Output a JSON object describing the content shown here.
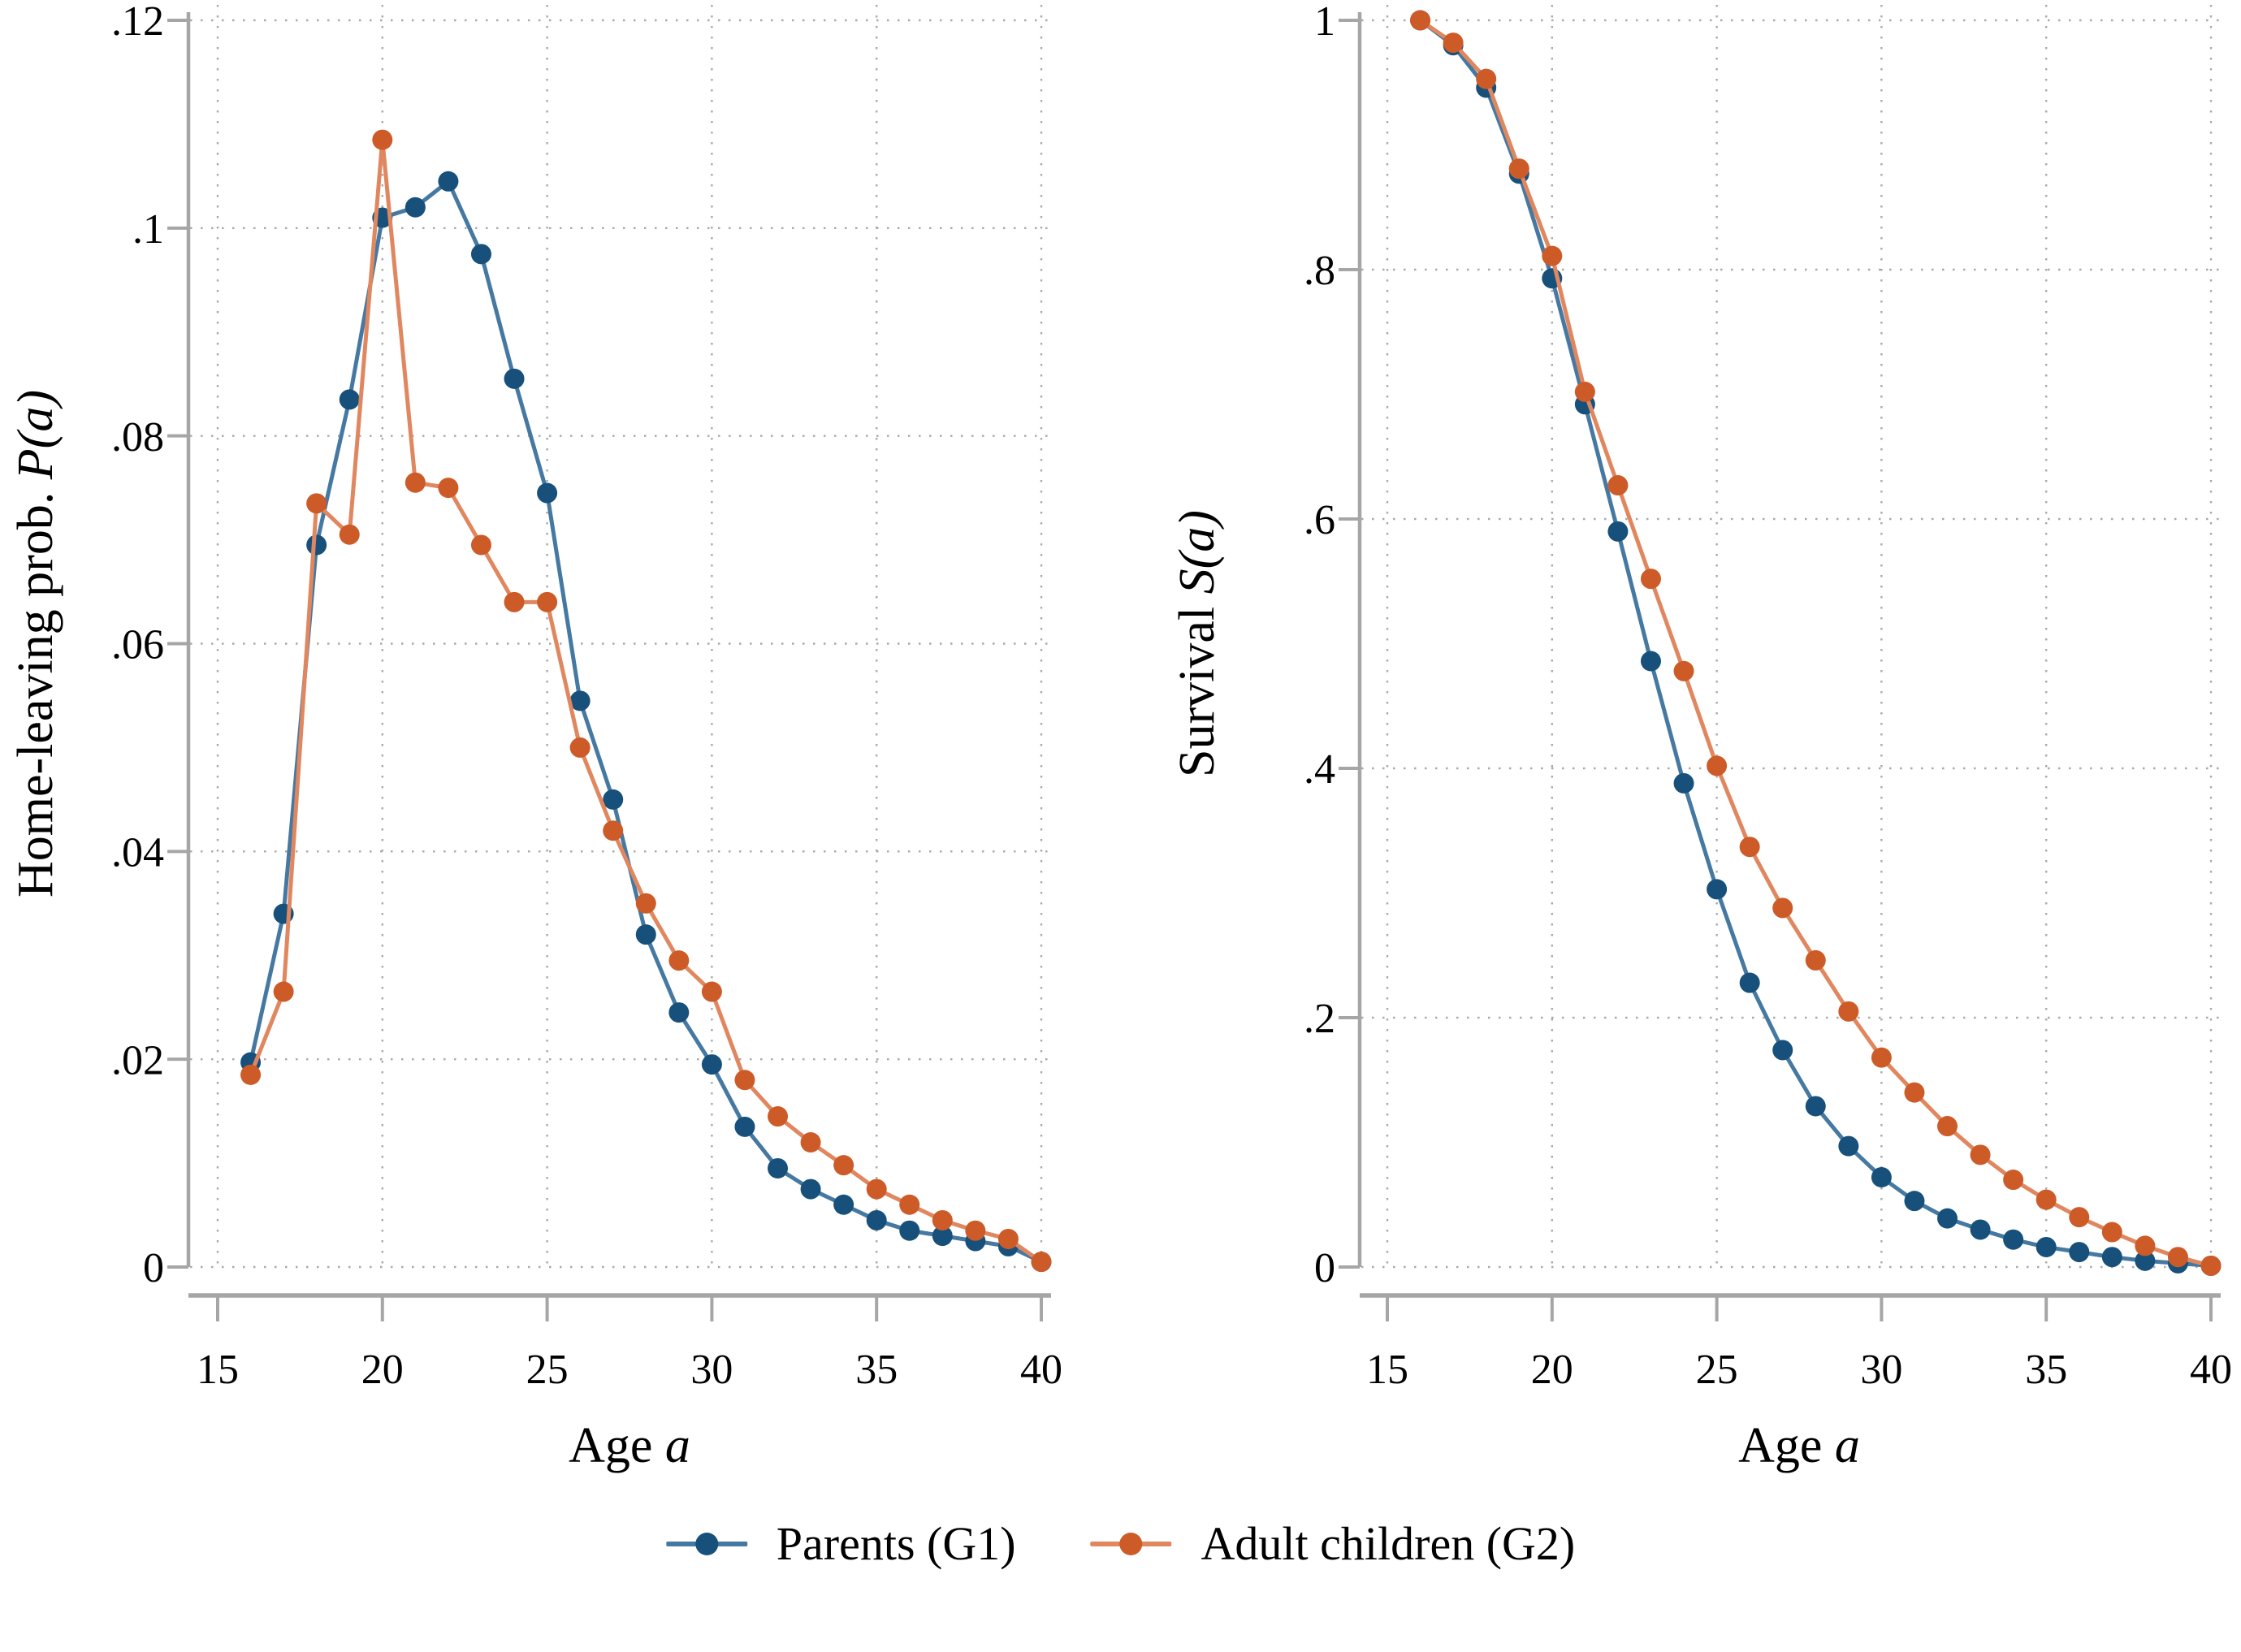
{
  "figure": {
    "background": "#ffffff",
    "panels_count": 2
  },
  "colors": {
    "g1_marker": "#17517b",
    "g1_line": "#4579a2",
    "g2_marker": "#cd5b28",
    "g2_line": "#e0875f",
    "axis": "#a6a6a6",
    "grid": "#a9a9a9",
    "text": "#000000",
    "background": "#ffffff"
  },
  "legend": {
    "position": "bottom-center",
    "items": [
      {
        "label": "Parents (G1)",
        "marker_color": "#17517b",
        "line_color": "#4579a2"
      },
      {
        "label": "Adult children (G2)",
        "marker_color": "#cd5b28",
        "line_color": "#e0875f"
      }
    ]
  },
  "chart_data": [
    {
      "type": "line",
      "name": "home-leaving-probability",
      "title": "",
      "xlabel": "Age",
      "xlabel_math": "a",
      "ylabel": "Home-leaving prob.",
      "ylabel_math": "P(a)",
      "xlim": [
        15,
        40
      ],
      "ylim": [
        0,
        0.12
      ],
      "xticks": [
        15,
        20,
        25,
        30,
        35,
        40
      ],
      "xtick_labels": [
        "15",
        "20",
        "25",
        "30",
        "35",
        "40"
      ],
      "yticks": [
        0,
        0.02,
        0.04,
        0.06,
        0.08,
        0.1,
        0.12
      ],
      "ytick_labels": [
        "0",
        ".02",
        ".04",
        ".06",
        ".08",
        ".1",
        ".12"
      ],
      "grid": true,
      "legend_position": "shared-bottom",
      "x": [
        16,
        17,
        18,
        19,
        20,
        21,
        22,
        23,
        24,
        25,
        26,
        27,
        28,
        29,
        30,
        31,
        32,
        33,
        34,
        35,
        36,
        37,
        38,
        39,
        40
      ],
      "series": [
        {
          "name": "Parents (G1)",
          "marker_color": "#17517b",
          "line_color": "#4579a2",
          "values": [
            0.0197,
            0.034,
            0.0695,
            0.0835,
            0.101,
            0.102,
            0.1045,
            0.0975,
            0.0855,
            0.0745,
            0.0545,
            0.045,
            0.032,
            0.0245,
            0.0195,
            0.0135,
            0.0095,
            0.0075,
            0.006,
            0.0045,
            0.0035,
            0.003,
            0.0025,
            0.002,
            0.0005
          ]
        },
        {
          "name": "Adult children (G2)",
          "marker_color": "#cd5b28",
          "line_color": "#e0875f",
          "values": [
            0.0185,
            0.0265,
            0.0735,
            0.0705,
            0.1085,
            0.0755,
            0.075,
            0.0695,
            0.064,
            0.064,
            0.05,
            0.042,
            0.035,
            0.0295,
            0.0265,
            0.018,
            0.0145,
            0.012,
            0.0098,
            0.0075,
            0.006,
            0.0045,
            0.0035,
            0.0027,
            0.0005
          ]
        }
      ]
    },
    {
      "type": "line",
      "name": "survival",
      "title": "",
      "xlabel": "Age",
      "xlabel_math": "a",
      "ylabel": "Survival",
      "ylabel_math": "S(a)",
      "xlim": [
        15,
        40
      ],
      "ylim": [
        0,
        1
      ],
      "xticks": [
        15,
        20,
        25,
        30,
        35,
        40
      ],
      "xtick_labels": [
        "15",
        "20",
        "25",
        "30",
        "35",
        "40"
      ],
      "yticks": [
        0,
        0.2,
        0.4,
        0.6,
        0.8,
        1
      ],
      "ytick_labels": [
        "0",
        ".2",
        ".4",
        ".6",
        ".8",
        "1"
      ],
      "grid": true,
      "legend_position": "shared-bottom",
      "x": [
        16,
        17,
        18,
        19,
        20,
        21,
        22,
        23,
        24,
        25,
        26,
        27,
        28,
        29,
        30,
        31,
        32,
        33,
        34,
        35,
        36,
        37,
        38,
        39,
        40
      ],
      "series": [
        {
          "name": "Parents (G1)",
          "marker_color": "#17517b",
          "line_color": "#4579a2",
          "values": [
            1.0,
            0.98,
            0.946,
            0.877,
            0.793,
            0.692,
            0.59,
            0.486,
            0.388,
            0.303,
            0.228,
            0.174,
            0.129,
            0.097,
            0.072,
            0.053,
            0.039,
            0.03,
            0.022,
            0.016,
            0.012,
            0.008,
            0.005,
            0.003,
            0.001
          ]
        },
        {
          "name": "Adult children (G2)",
          "marker_color": "#cd5b28",
          "line_color": "#e0875f",
          "values": [
            1.0,
            0.982,
            0.953,
            0.881,
            0.811,
            0.702,
            0.627,
            0.552,
            0.478,
            0.402,
            0.337,
            0.288,
            0.246,
            0.205,
            0.168,
            0.14,
            0.113,
            0.09,
            0.07,
            0.054,
            0.04,
            0.028,
            0.017,
            0.008,
            0.001
          ]
        }
      ]
    }
  ]
}
